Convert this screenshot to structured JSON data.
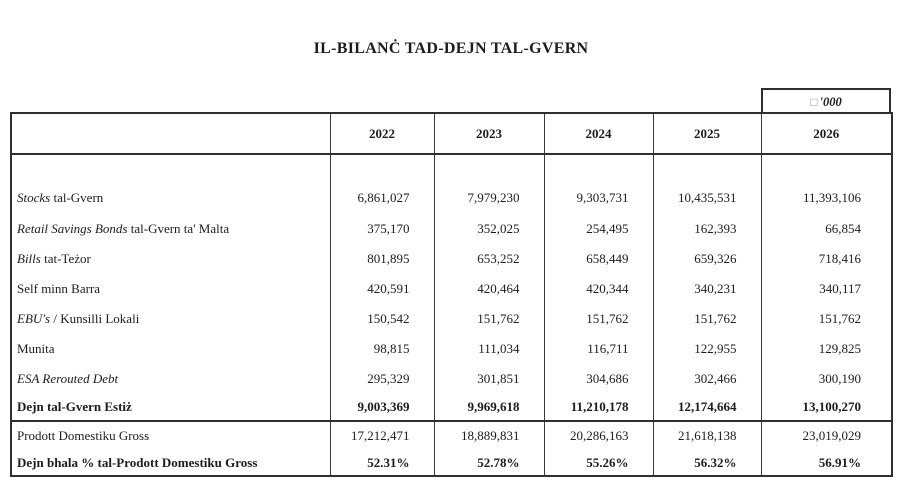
{
  "title": "IL-BILANĊ TAD-DEJN TAL-GVERN",
  "units": {
    "glyph": "□",
    "suffix": "'000"
  },
  "columns": [
    "2022",
    "2023",
    "2024",
    "2025",
    "2026"
  ],
  "body_rows": [
    {
      "label1": "Stocks",
      "label2": " tal-Gvern",
      "values": [
        "6,861,027",
        "7,979,230",
        "9,303,731",
        "10,435,531",
        "11,393,106"
      ]
    },
    {
      "label1": "Retail Savings Bonds",
      "label2": " tal-Gvern ta' Malta",
      "values": [
        "375,170",
        "352,025",
        "254,495",
        "162,393",
        "66,854"
      ]
    },
    {
      "label1": "Bills",
      "label2": " tat-Teżor",
      "values": [
        "801,895",
        "653,252",
        "658,449",
        "659,326",
        "718,416"
      ]
    },
    {
      "label1": "",
      "label2": "Self minn Barra",
      "values": [
        "420,591",
        "420,464",
        "420,344",
        "340,231",
        "340,117"
      ]
    },
    {
      "label1": "EBU's",
      "label2": " / Kunsilli Lokali",
      "values": [
        "150,542",
        "151,762",
        "151,762",
        "151,762",
        "151,762"
      ]
    },
    {
      "label1": "",
      "label2": "Munita",
      "values": [
        "98,815",
        "111,034",
        "116,711",
        "122,955",
        "129,825"
      ]
    },
    {
      "label1": "ESA Rerouted Debt",
      "label2": "",
      "values": [
        "295,329",
        "301,851",
        "304,686",
        "302,466",
        "300,190"
      ]
    },
    {
      "label1": "",
      "label2": "Dejn tal-Gvern Estiż",
      "values": [
        "9,003,369",
        "9,969,618",
        "11,210,178",
        "12,174,664",
        "13,100,270"
      ]
    }
  ],
  "footer_rows": [
    {
      "label": "Prodott Domestiku Gross",
      "values": [
        "17,212,471",
        "18,889,831",
        "20,286,163",
        "21,618,138",
        "23,019,029"
      ]
    },
    {
      "label": "Dejn bhala % tal-Prodott Domestiku Gross",
      "values": [
        "52.31%",
        "52.78%",
        "55.26%",
        "56.32%",
        "56.91%"
      ]
    }
  ],
  "colors": {
    "text": "#1c1c1c",
    "border": "#2f2f2f",
    "background": "#ffffff"
  }
}
